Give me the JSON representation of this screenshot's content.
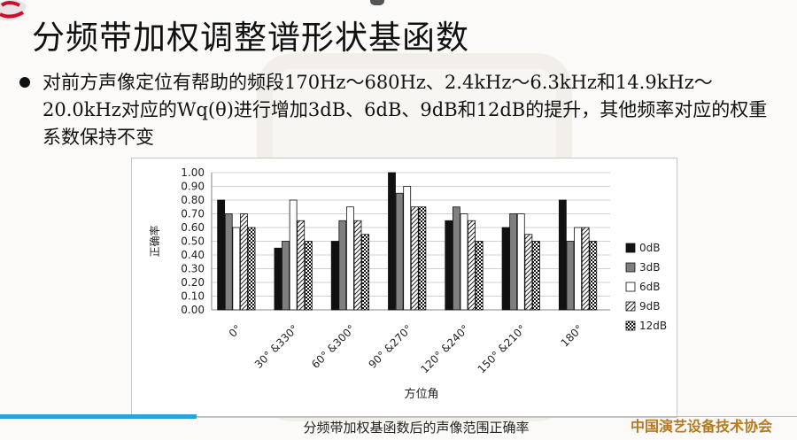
{
  "slide": {
    "title": "分频带加权调整谱形状基函数",
    "bullet": "对前方声像定位有帮助的频段170Hz～680Hz、2.4kHz～6.3kHz和14.9kHz～20.0kHz对应的Wq(θ)进行增加3dB、6dB、9dB和12dB的提升，其他频率对应的权重系数保持不变",
    "caption": "分频带加权基函数后的声像范围正确率",
    "organization": "中国演艺设备技术协会"
  },
  "colors": {
    "accent_bar": "#2aa3d6",
    "org_text": "#b57a1c"
  },
  "chart_data": {
    "type": "bar",
    "categories": [
      "0°",
      "30° &330°",
      "60° &300°",
      "90° &270°",
      "120° &240°",
      "150° &210°",
      "180°"
    ],
    "series": [
      {
        "name": "0dB",
        "fill": "solid-black",
        "values": [
          0.8,
          0.45,
          0.5,
          1.0,
          0.65,
          0.6,
          0.8
        ]
      },
      {
        "name": "3dB",
        "fill": "solid-gray",
        "values": [
          0.7,
          0.5,
          0.65,
          0.85,
          0.75,
          0.7,
          0.5
        ]
      },
      {
        "name": "6dB",
        "fill": "white",
        "values": [
          0.6,
          0.8,
          0.75,
          0.9,
          0.7,
          0.7,
          0.6
        ]
      },
      {
        "name": "9dB",
        "fill": "diagonal-hatch",
        "values": [
          0.7,
          0.65,
          0.65,
          0.75,
          0.65,
          0.55,
          0.6
        ]
      },
      {
        "name": "12dB",
        "fill": "checker",
        "values": [
          0.6,
          0.5,
          0.55,
          0.75,
          0.5,
          0.5,
          0.5
        ]
      }
    ],
    "xlabel": "方位角",
    "ylabel": "正确率",
    "ylim": [
      0,
      1
    ],
    "yticks": [
      "0.00",
      "0.10",
      "0.20",
      "0.30",
      "0.40",
      "0.50",
      "0.60",
      "0.70",
      "0.80",
      "0.90",
      "1.00"
    ],
    "grid": true,
    "legend": "right"
  }
}
